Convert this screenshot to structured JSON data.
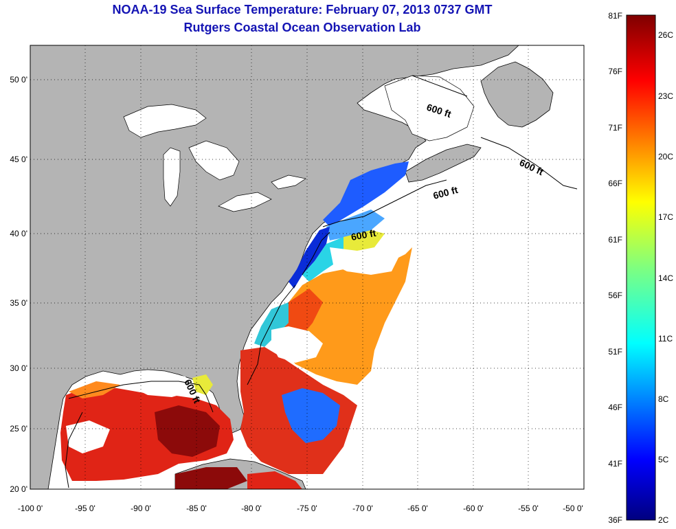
{
  "title": "NOAA-19 Sea Surface Temperature:  February 07, 2013 0737 GMT",
  "subtitle": "Rutgers Coastal Ocean Observation Lab",
  "map": {
    "lon_range": [
      -100,
      -50
    ],
    "lat_range": [
      20,
      52
    ],
    "lon_ticks": [
      "-100 0'",
      "-95 0'",
      "-90 0'",
      "-85 0'",
      "-80 0'",
      "-75 0'",
      "-70 0'",
      "-65 0'",
      "-60 0'",
      "-55 0'",
      "-50 0'"
    ],
    "lat_ticks": [
      "20 0'",
      "25 0'",
      "30 0'",
      "35 0'",
      "40 0'",
      "45 0'",
      "50 0'"
    ],
    "contour_labels": [
      "600 ft",
      "600 ft",
      "600 ft",
      "600 ft",
      "600 ft"
    ],
    "land_color": "#b4b4b4",
    "grid": "dotted"
  },
  "colorbar": {
    "fahrenheit_labels": [
      "81F",
      "76F",
      "71F",
      "66F",
      "61F",
      "56F",
      "51F",
      "46F",
      "41F",
      "36F"
    ],
    "celsius_labels": [
      "26C",
      "23C",
      "20C",
      "17C",
      "14C",
      "11C",
      "8C",
      "5C",
      "2C"
    ],
    "colormap": "jet"
  }
}
